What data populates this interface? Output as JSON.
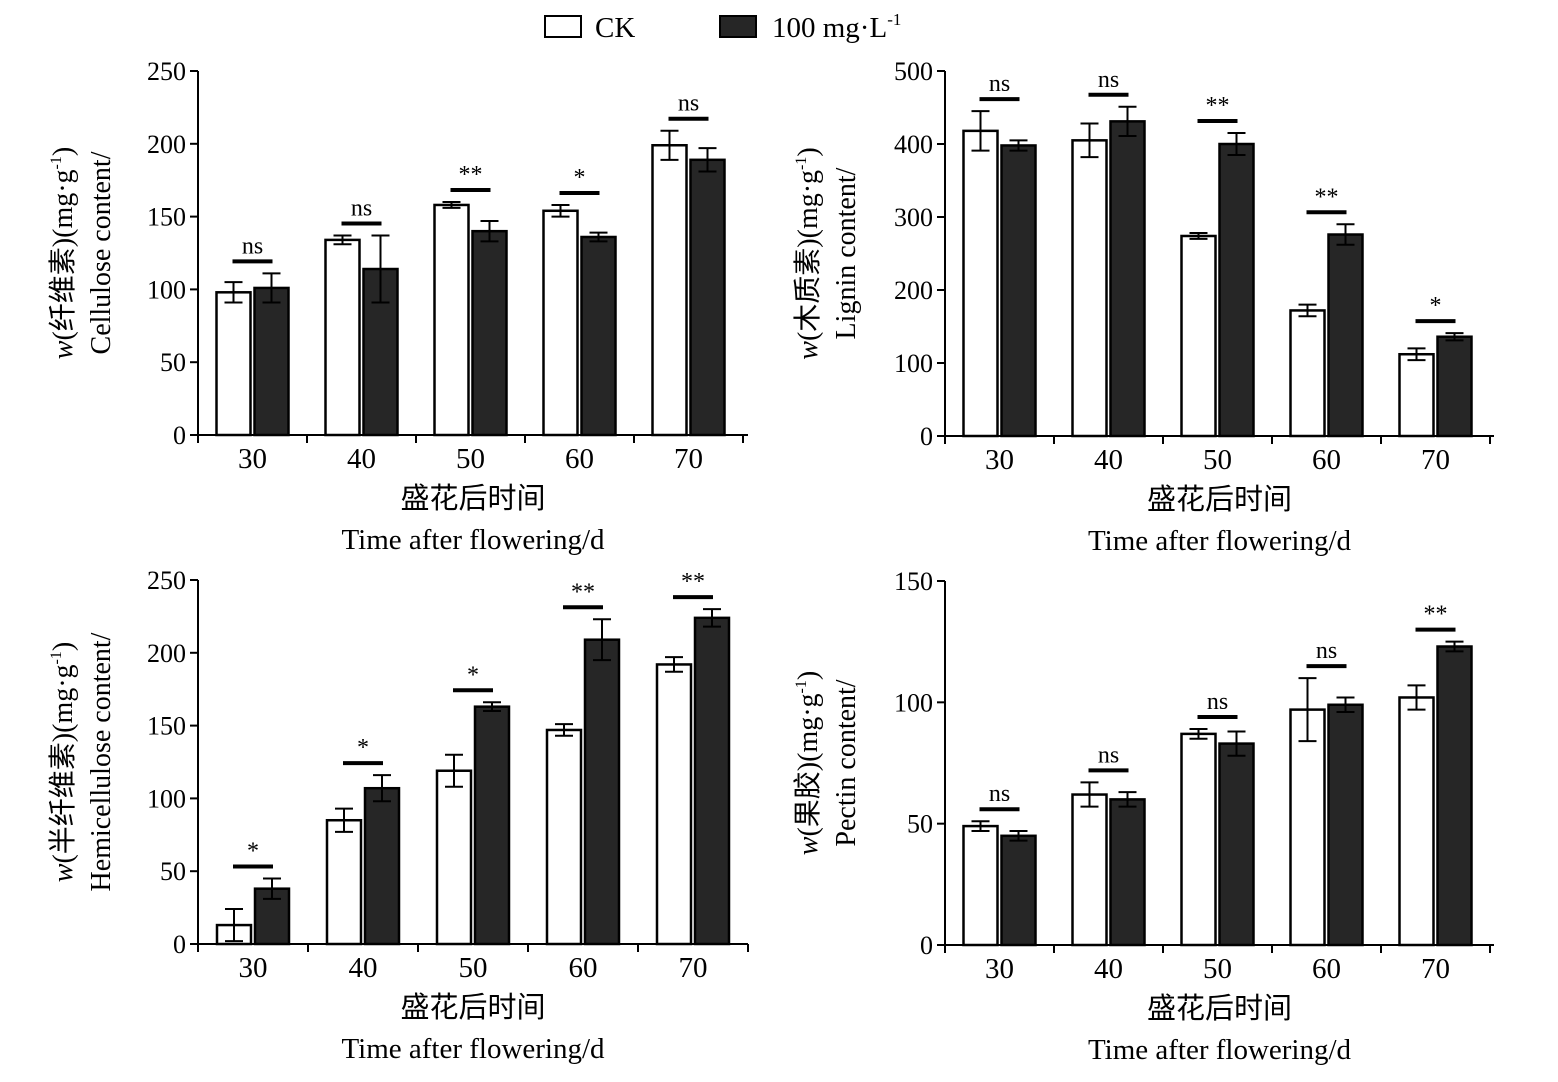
{
  "legend": {
    "items": [
      {
        "label": "CK",
        "color": "#ffffff"
      },
      {
        "label": "100 mg·L",
        "sup": "-1",
        "color": "#262626"
      }
    ]
  },
  "colors": {
    "ck": "#ffffff",
    "treatment": "#262626",
    "stroke": "#000000"
  },
  "chart_data": [
    {
      "type": "bar",
      "panel": "top-left",
      "categories": [
        "30",
        "40",
        "50",
        "60",
        "70"
      ],
      "series": [
        {
          "name": "CK",
          "values": [
            98,
            134,
            158,
            154,
            199
          ],
          "errors": [
            7,
            3,
            2,
            4,
            10
          ]
        },
        {
          "name": "100 mg·L-1",
          "values": [
            101,
            114,
            140,
            136,
            189
          ],
          "errors": [
            10,
            23,
            7,
            3,
            8
          ]
        }
      ],
      "significance": [
        "ns",
        "ns",
        "**",
        "*",
        "ns"
      ],
      "ylim": [
        0,
        250
      ],
      "yticks": [
        0,
        50,
        100,
        150,
        200,
        250
      ],
      "ylabel": {
        "w": "w",
        "cn": "(纤维素)",
        "en": "Cellulose content/",
        "unit": "(mg·g",
        "sup": "-1",
        "close": ")"
      },
      "xlabel_cn": "盛花后时间",
      "xlabel_en": "Time after flowering/d"
    },
    {
      "type": "bar",
      "panel": "top-right",
      "categories": [
        "30",
        "40",
        "50",
        "60",
        "70"
      ],
      "series": [
        {
          "name": "CK",
          "values": [
            418,
            405,
            274,
            172,
            112
          ],
          "errors": [
            27,
            23,
            4,
            8,
            8
          ]
        },
        {
          "name": "100 mg·L-1",
          "values": [
            398,
            431,
            400,
            276,
            136
          ],
          "errors": [
            7,
            20,
            15,
            14,
            5
          ]
        }
      ],
      "significance": [
        "ns",
        "ns",
        "**",
        "**",
        "*"
      ],
      "ylim": [
        0,
        500
      ],
      "yticks": [
        0,
        100,
        200,
        300,
        400,
        500
      ],
      "ylabel": {
        "w": "w",
        "cn": "(木质素)",
        "en": "Lignin content/",
        "unit": "(mg·g",
        "sup": "-1",
        "close": ")"
      },
      "xlabel_cn": "盛花后时间",
      "xlabel_en": "Time after flowering/d"
    },
    {
      "type": "bar",
      "panel": "bottom-left",
      "categories": [
        "30",
        "40",
        "50",
        "60",
        "70"
      ],
      "series": [
        {
          "name": "CK",
          "values": [
            13,
            85,
            119,
            147,
            192
          ],
          "errors": [
            11,
            8,
            11,
            4,
            5
          ]
        },
        {
          "name": "100 mg·L-1",
          "values": [
            38,
            107,
            163,
            209,
            224
          ],
          "errors": [
            7,
            9,
            3,
            14,
            6
          ]
        }
      ],
      "significance": [
        "*",
        "*",
        "*",
        "**",
        "**"
      ],
      "ylim": [
        0,
        250
      ],
      "yticks": [
        0,
        50,
        100,
        150,
        200,
        250
      ],
      "ylabel": {
        "w": "w",
        "cn": "(半纤维素)",
        "en": "Hemicellulose content/",
        "unit": "(mg·g",
        "sup": "-1",
        "close": ")"
      },
      "xlabel_cn": "盛花后时间",
      "xlabel_en": "Time after flowering/d"
    },
    {
      "type": "bar",
      "panel": "bottom-right",
      "categories": [
        "30",
        "40",
        "50",
        "60",
        "70"
      ],
      "series": [
        {
          "name": "CK",
          "values": [
            49,
            62,
            87,
            97,
            102
          ],
          "errors": [
            2,
            5,
            2,
            13,
            5
          ]
        },
        {
          "name": "100 mg·L-1",
          "values": [
            45,
            60,
            83,
            99,
            123
          ],
          "errors": [
            2,
            3,
            5,
            3,
            2
          ]
        }
      ],
      "significance": [
        "ns",
        "ns",
        "ns",
        "ns",
        "**"
      ],
      "ylim": [
        0,
        150
      ],
      "yticks": [
        0,
        50,
        100,
        150
      ],
      "ylabel": {
        "w": "w",
        "cn": "(果胶)",
        "en": "Pectin content/",
        "unit": "(mg·g",
        "sup": "-1",
        "close": ")"
      },
      "xlabel_cn": "盛花后时间",
      "xlabel_en": "Time after flowering/d"
    }
  ]
}
